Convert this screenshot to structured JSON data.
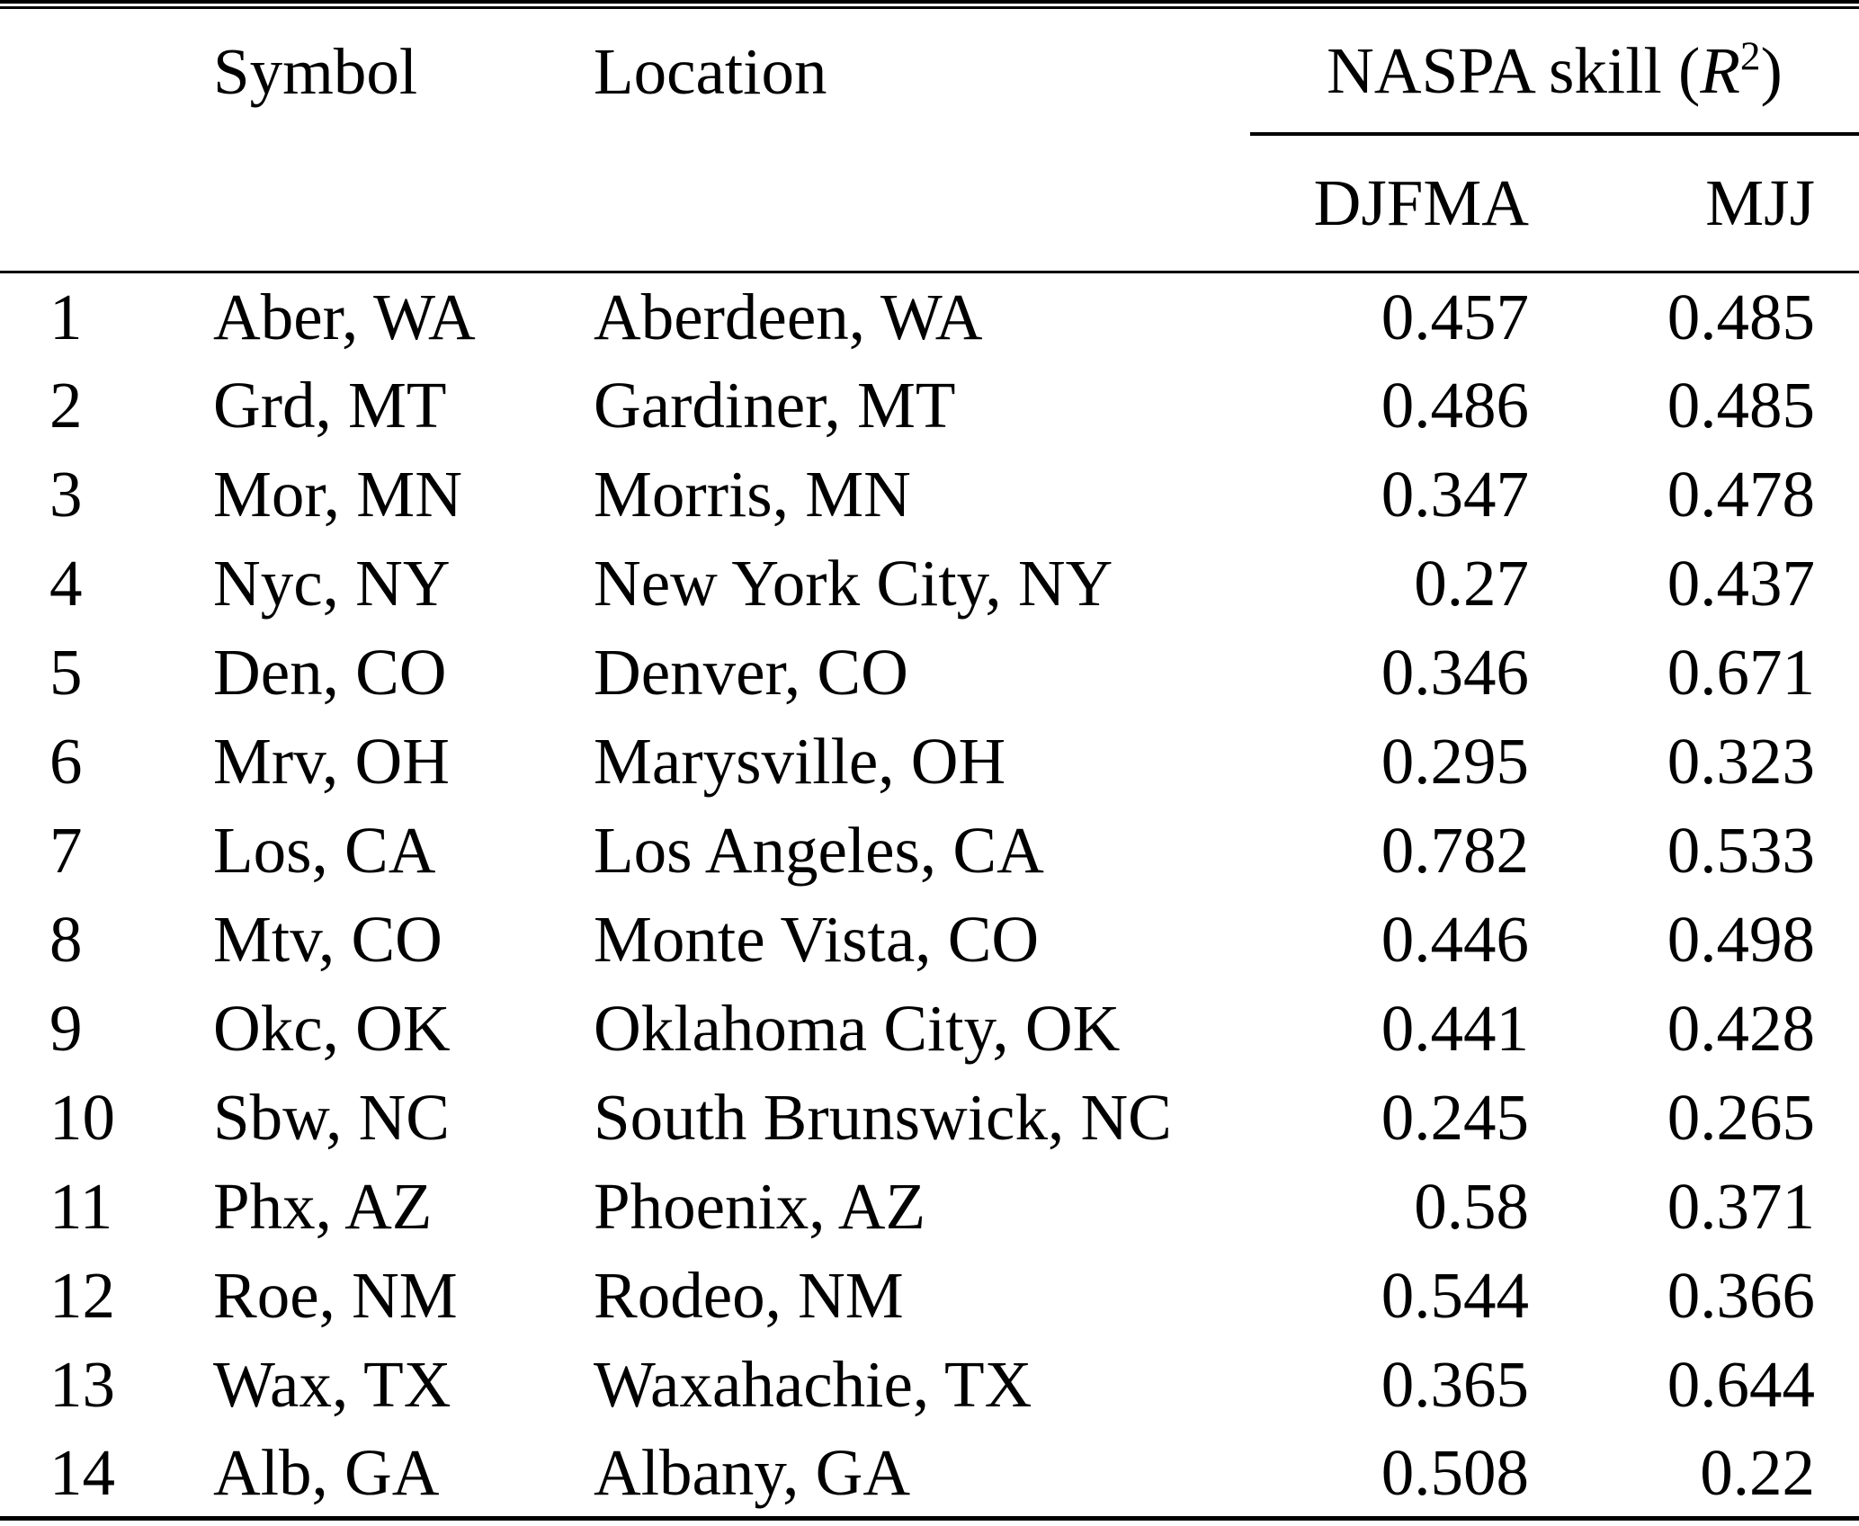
{
  "table": {
    "columns": {
      "symbol": "Symbol",
      "location": "Location",
      "naspa": {
        "prefix": "NASPA skill (",
        "var": "R",
        "sup": "2",
        "suffix": ")"
      },
      "sub_djfma": "DJFMA",
      "sub_mjj": "MJJ"
    },
    "rows": [
      {
        "num": "1",
        "symbol": "Aber, WA",
        "location": "Aberdeen, WA",
        "djfma": "0.457",
        "mjj": "0.485"
      },
      {
        "num": "2",
        "symbol": "Grd, MT",
        "location": "Gardiner, MT",
        "djfma": "0.486",
        "mjj": "0.485"
      },
      {
        "num": "3",
        "symbol": "Mor, MN",
        "location": "Morris, MN",
        "djfma": "0.347",
        "mjj": "0.478"
      },
      {
        "num": "4",
        "symbol": "Nyc, NY",
        "location": "New York City, NY",
        "djfma": "0.27",
        "mjj": "0.437"
      },
      {
        "num": "5",
        "symbol": "Den, CO",
        "location": "Denver, CO",
        "djfma": "0.346",
        "mjj": "0.671"
      },
      {
        "num": "6",
        "symbol": "Mrv, OH",
        "location": "Marysville, OH",
        "djfma": "0.295",
        "mjj": "0.323"
      },
      {
        "num": "7",
        "symbol": "Los, CA",
        "location": "Los Angeles, CA",
        "djfma": "0.782",
        "mjj": "0.533"
      },
      {
        "num": "8",
        "symbol": "Mtv, CO",
        "location": "Monte Vista, CO",
        "djfma": "0.446",
        "mjj": "0.498"
      },
      {
        "num": "9",
        "symbol": "Okc, OK",
        "location": "Oklahoma City, OK",
        "djfma": "0.441",
        "mjj": "0.428"
      },
      {
        "num": "10",
        "symbol": "Sbw, NC",
        "location": "South Brunswick, NC",
        "djfma": "0.245",
        "mjj": "0.265"
      },
      {
        "num": "11",
        "symbol": "Phx, AZ",
        "location": "Phoenix, AZ",
        "djfma": "0.58",
        "mjj": "0.371"
      },
      {
        "num": "12",
        "symbol": "Roe, NM",
        "location": "Rodeo, NM",
        "djfma": "0.544",
        "mjj": "0.366"
      },
      {
        "num": "13",
        "symbol": "Wax, TX",
        "location": "Waxahachie, TX",
        "djfma": "0.365",
        "mjj": "0.644"
      },
      {
        "num": "14",
        "symbol": "Alb, GA",
        "location": "Albany, GA",
        "djfma": "0.508",
        "mjj": "0.22"
      }
    ]
  }
}
